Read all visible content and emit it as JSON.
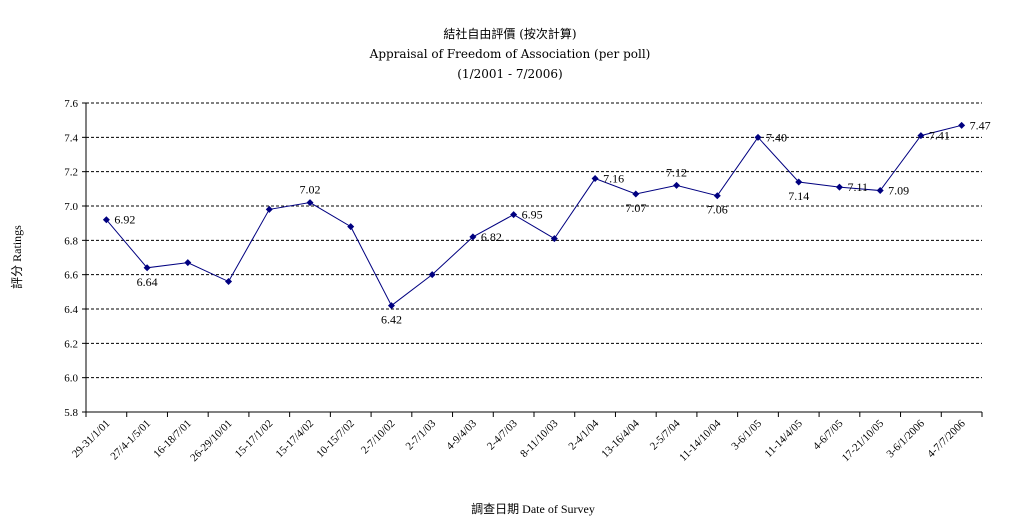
{
  "chart_data": {
    "type": "line",
    "title_zh": "結社自由評價 (按次計算)",
    "title": "Appraisal of Freedom of Association (per poll)",
    "subtitle": "(1/2001 - 7/2006)",
    "xlabel": "調查日期 Date of Survey",
    "ylabel": "評分 Ratings",
    "ylim": [
      5.8,
      7.6
    ],
    "yticks": [
      "5.8",
      "6.0",
      "6.2",
      "6.4",
      "6.6",
      "6.8",
      "7.0",
      "7.2",
      "7.4",
      "7.6"
    ],
    "grid": "horizontal-dashed",
    "line_color": "#000080",
    "categories": [
      "29-31/1/01",
      "27/4-1/5/01",
      "16-18/7/01",
      "26-29/10/01",
      "15-17/1/02",
      "15-17/4/02",
      "10-15/7/02",
      "2-7/10/02",
      "2-7/1/03",
      "4-9/4/03",
      "2-4/7/03",
      "8-11/10/03",
      "2-4/1/04",
      "13-16/4/04",
      "2-5/7/04",
      "11-14/10/04",
      "3-6/1/05",
      "11-14/4/05",
      "4-6/7/05",
      "17-21/10/05",
      "3-6/1/2006",
      "4-7/7/2006"
    ],
    "values": [
      6.92,
      6.64,
      6.67,
      6.56,
      6.98,
      7.02,
      6.88,
      6.42,
      6.6,
      6.82,
      6.95,
      6.81,
      7.16,
      7.07,
      7.12,
      7.06,
      7.4,
      7.14,
      7.11,
      7.09,
      7.41,
      7.47
    ],
    "data_labels": [
      {
        "index": 0,
        "text": "6.92",
        "pos": "right"
      },
      {
        "index": 1,
        "text": "6.64",
        "pos": "below"
      },
      {
        "index": 5,
        "text": "7.02",
        "pos": "above"
      },
      {
        "index": 7,
        "text": "6.42",
        "pos": "below"
      },
      {
        "index": 9,
        "text": "6.82",
        "pos": "right"
      },
      {
        "index": 10,
        "text": "6.95",
        "pos": "right"
      },
      {
        "index": 12,
        "text": "7.16",
        "pos": "right"
      },
      {
        "index": 13,
        "text": "7.07",
        "pos": "below"
      },
      {
        "index": 14,
        "text": "7.12",
        "pos": "above"
      },
      {
        "index": 15,
        "text": "7.06",
        "pos": "below"
      },
      {
        "index": 16,
        "text": "7.40",
        "pos": "right"
      },
      {
        "index": 17,
        "text": "7.14",
        "pos": "below"
      },
      {
        "index": 18,
        "text": "7.11",
        "pos": "right"
      },
      {
        "index": 19,
        "text": "7.09",
        "pos": "right"
      },
      {
        "index": 20,
        "text": "7.41",
        "pos": "right"
      },
      {
        "index": 21,
        "text": "7.47",
        "pos": "right"
      }
    ]
  }
}
